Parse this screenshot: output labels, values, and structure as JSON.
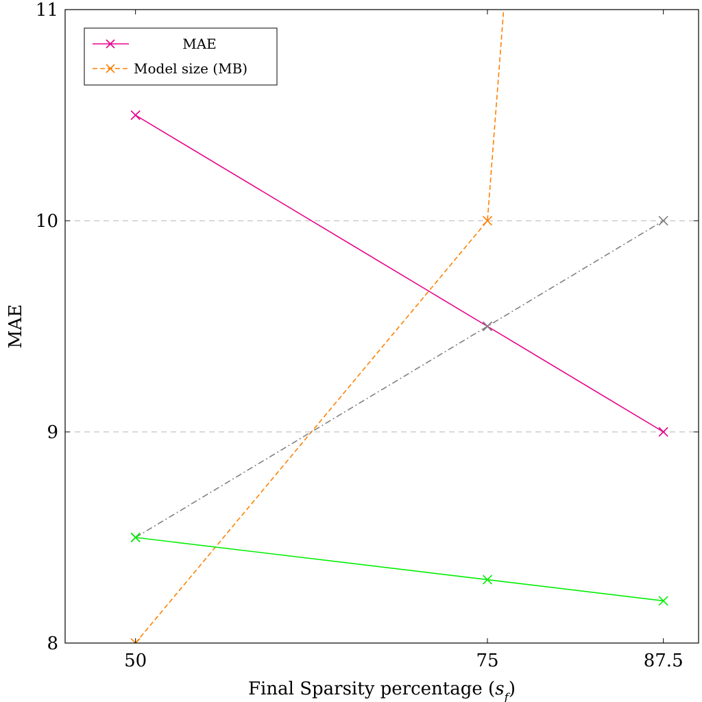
{
  "chart_data": {
    "type": "line",
    "x_ticks": [
      "50",
      "75",
      "87.5"
    ],
    "y_ticks": [
      "8",
      "9",
      "10",
      "11"
    ],
    "xlabel_prefix": "Final Sparsity percentage (",
    "xlabel_var": "s",
    "xlabel_sub": "f",
    "xlabel_suffix": ")",
    "ylabel": "MAE",
    "xlim": [
      45,
      90
    ],
    "ylim": [
      8,
      11
    ],
    "grid": "horizontal dashed at 9 and 10",
    "legend_position": "top-left",
    "series": [
      {
        "name": "MAE",
        "color": "#e6008a",
        "style": "solid",
        "marker": "x",
        "in_legend": true,
        "x": [
          50,
          75,
          87.5
        ],
        "y": [
          10.5,
          9.5,
          9.0
        ]
      },
      {
        "name": "Model size (MB)",
        "color": "#ff8000",
        "style": "dashed",
        "marker": "x",
        "in_legend": true,
        "x": [
          50,
          75,
          76.5
        ],
        "y": [
          8.0,
          10.0,
          11.3
        ],
        "markers_at": [
          0,
          1
        ]
      },
      {
        "color": "#808080",
        "style": "dashdot",
        "marker": "x",
        "in_legend": false,
        "x": [
          50,
          75,
          87.5
        ],
        "y": [
          8.5,
          9.5,
          10.0
        ]
      },
      {
        "color": "#00ee00",
        "style": "solid",
        "marker": "x",
        "in_legend": false,
        "x": [
          50,
          75,
          87.5
        ],
        "y": [
          8.5,
          8.3,
          8.2
        ]
      }
    ]
  }
}
